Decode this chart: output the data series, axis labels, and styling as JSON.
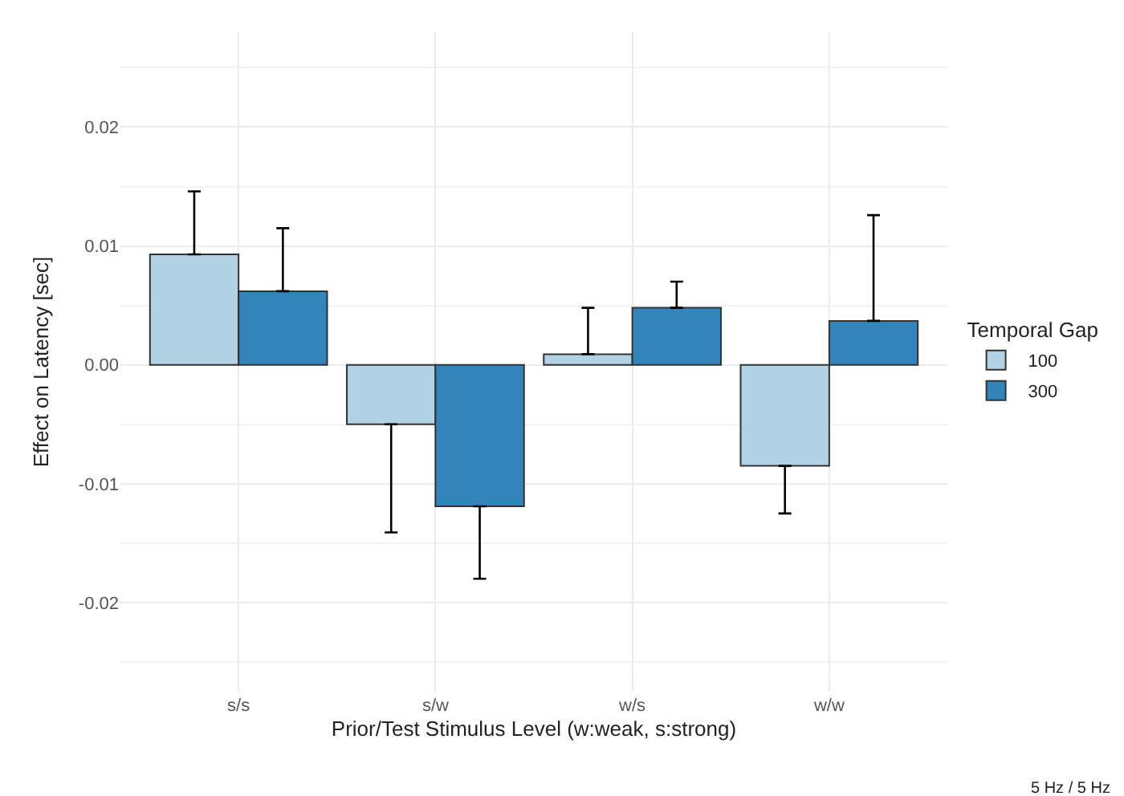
{
  "chart_data": {
    "type": "bar",
    "xlabel": "Prior/Test Stimulus Level (w:weak, s:strong)",
    "ylabel": "Effect on Latency [sec]",
    "legend_title": "Temporal Gap",
    "categories": [
      "s/s",
      "s/w",
      "w/s",
      "w/w"
    ],
    "series": [
      {
        "name": "100",
        "color": "#b0d2e4",
        "values": [
          0.0093,
          -0.005,
          0.0009,
          -0.0085
        ],
        "errors": [
          [
            0.0093,
            0.0146
          ],
          [
            -0.0141,
            -0.005
          ],
          [
            0.0009,
            0.0048
          ],
          [
            -0.0125,
            -0.0085
          ]
        ]
      },
      {
        "name": "300",
        "color": "#3484bc",
        "values": [
          0.0062,
          -0.0119,
          0.0048,
          0.0037
        ],
        "errors": [
          [
            0.0062,
            0.0115
          ],
          [
            -0.018,
            -0.0119
          ],
          [
            0.0048,
            0.007
          ],
          [
            0.0037,
            0.0126
          ]
        ]
      }
    ],
    "ylim": [
      -0.0275,
      0.028
    ],
    "yticks": [
      {
        "value": -0.02,
        "label": "-0.02"
      },
      {
        "value": -0.01,
        "label": "-0.01"
      },
      {
        "value": 0,
        "label": "0.00"
      },
      {
        "value": 0.01,
        "label": "0.01"
      },
      {
        "value": 0.02,
        "label": "0.02"
      }
    ],
    "grid": true,
    "legend": "right",
    "annotations": [
      "5 Hz / 5 Hz"
    ]
  }
}
